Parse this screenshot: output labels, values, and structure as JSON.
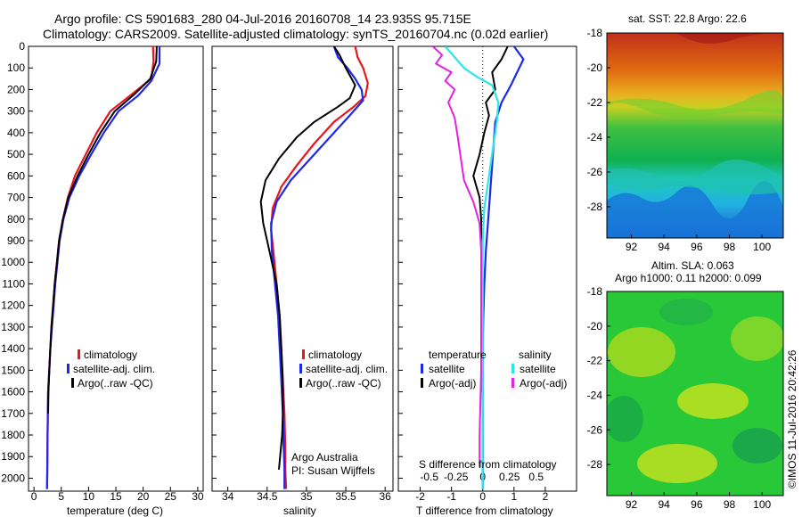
{
  "header": {
    "line1": "Argo profile: CS 5901683_280 04-Jul-2016 20160708_14 23.935S 95.715E",
    "line2": "Climatology: CARS2009. Satellite-adjusted climatology: synTS_20160704.nc (0.02d earlier)"
  },
  "colors": {
    "climatology": "#e8141e",
    "satellite": "#1e28e6",
    "argo": "#000000",
    "satellite_salinity": "#2ee6e6",
    "argo_salinity_adj": "#e61ee6"
  },
  "chart_data": [
    {
      "type": "line",
      "name": "temperature-profile",
      "xlabel": "temperature (deg C)",
      "ylabel": "",
      "xlim": [
        -1,
        31
      ],
      "ylim": [
        0,
        2060
      ],
      "y_inverted": true,
      "xticks": [
        0,
        5,
        10,
        15,
        20,
        25,
        30
      ],
      "yticks": [
        0,
        100,
        200,
        300,
        400,
        500,
        600,
        700,
        800,
        900,
        1000,
        1100,
        1200,
        1300,
        1400,
        1500,
        1600,
        1700,
        1800,
        1900,
        2000
      ],
      "legend": [
        "climatology",
        "satellite-adj. clim.",
        "Argo(..raw -QC)"
      ],
      "series": [
        {
          "name": "climatology",
          "color": "#e8141e",
          "width": 2.2,
          "x": [
            21.8,
            21.9,
            21.5,
            18.0,
            14.0,
            11.5,
            9.5,
            7.5,
            6.2,
            5.3,
            4.6,
            4.2,
            3.8,
            3.5,
            3.2,
            3.0,
            2.8,
            2.6,
            2.5,
            2.45,
            2.4
          ],
          "y": [
            0,
            70,
            150,
            220,
            300,
            400,
            500,
            600,
            700,
            800,
            900,
            1000,
            1100,
            1200,
            1300,
            1400,
            1500,
            1600,
            1800,
            1950,
            2050
          ]
        },
        {
          "name": "satellite-adj. clim.",
          "color": "#1e28e6",
          "width": 2.2,
          "x": [
            23.0,
            23.0,
            21.5,
            19.0,
            15.5,
            12.8,
            10.5,
            8.3,
            6.5,
            5.4,
            4.7,
            4.3,
            3.9,
            3.6,
            3.3,
            3.0,
            2.8,
            2.6,
            2.5,
            2.45,
            2.4
          ],
          "y": [
            0,
            80,
            160,
            230,
            300,
            400,
            500,
            600,
            700,
            800,
            900,
            1000,
            1100,
            1200,
            1300,
            1400,
            1500,
            1600,
            1800,
            1950,
            2050
          ]
        },
        {
          "name": "Argo(..raw -QC)",
          "color": "#000000",
          "width": 2,
          "x": [
            22.5,
            22.4,
            21.3,
            18.5,
            14.8,
            12.2,
            10.0,
            8.0,
            6.3,
            5.3,
            4.6,
            4.2,
            3.8,
            3.5,
            3.2,
            3.0,
            2.8,
            2.65,
            2.6
          ],
          "y": [
            0,
            70,
            150,
            220,
            300,
            400,
            500,
            600,
            700,
            800,
            900,
            1000,
            1100,
            1200,
            1300,
            1400,
            1500,
            1600,
            1700
          ]
        }
      ]
    },
    {
      "type": "line",
      "name": "salinity-profile",
      "xlabel": "salinity",
      "ylabel": "",
      "xlim": [
        33.8,
        36.1
      ],
      "ylim": [
        0,
        2060
      ],
      "y_inverted": true,
      "xticks": [
        34,
        34.5,
        35,
        35.5,
        36
      ],
      "legend": [
        "climatology",
        "satellite-adj. clim.",
        "Argo(..raw -QC)"
      ],
      "annotation": [
        "Argo Australia",
        "PI: Susan Wijffels"
      ],
      "series": [
        {
          "name": "climatology",
          "color": "#e8141e",
          "width": 2.2,
          "x": [
            35.62,
            35.65,
            35.72,
            35.78,
            35.75,
            35.6,
            35.35,
            35.1,
            34.88,
            34.68,
            34.57,
            34.55,
            34.58,
            34.62,
            34.66,
            34.68,
            34.7,
            34.72,
            34.73,
            34.73,
            34.74
          ],
          "y": [
            0,
            50,
            100,
            170,
            230,
            280,
            350,
            450,
            550,
            650,
            750,
            850,
            950,
            1100,
            1250,
            1400,
            1550,
            1700,
            1850,
            1950,
            2050
          ]
        },
        {
          "name": "satellite-adj. clim.",
          "color": "#1e28e6",
          "width": 2.2,
          "x": [
            35.35,
            35.4,
            35.52,
            35.62,
            35.7,
            35.72,
            35.55,
            35.3,
            35.05,
            34.8,
            34.62,
            34.55,
            34.56,
            34.6,
            34.64,
            34.66,
            34.68,
            34.7,
            34.71,
            34.72,
            34.72
          ],
          "y": [
            0,
            50,
            100,
            150,
            200,
            250,
            320,
            420,
            520,
            620,
            720,
            820,
            950,
            1100,
            1250,
            1400,
            1550,
            1700,
            1850,
            1950,
            2050
          ]
        },
        {
          "name": "Argo(..raw -QC)",
          "color": "#000000",
          "width": 2,
          "x": [
            35.35,
            35.42,
            35.5,
            35.62,
            35.55,
            35.4,
            35.1,
            34.88,
            34.65,
            34.48,
            34.42,
            34.45,
            34.5,
            34.56,
            34.62,
            34.66,
            34.68,
            34.7,
            34.7,
            34.69,
            34.67,
            34.65
          ],
          "y": [
            0,
            40,
            100,
            180,
            240,
            280,
            350,
            420,
            520,
            620,
            720,
            820,
            900,
            1000,
            1100,
            1250,
            1400,
            1550,
            1700,
            1800,
            1880,
            1960
          ]
        }
      ]
    },
    {
      "type": "line",
      "name": "difference-profile",
      "xlabel": "T difference from climatology",
      "x2label": "S difference from climatology",
      "ylabel": "",
      "xlim": [
        -2.7,
        3.0
      ],
      "ylim": [
        0,
        2060
      ],
      "y_inverted": true,
      "xticks": [
        -2,
        -1,
        0,
        1,
        2
      ],
      "x2ticks": [
        -0.5,
        -0.25,
        0,
        0.25,
        0.5
      ],
      "x2tick_labels": [
        "-0.5",
        "-0.25",
        "0",
        "0.25",
        "0.5"
      ],
      "legend_temperature": {
        "heading": "temperature",
        "items": [
          "satellite",
          "Argo(-adj)"
        ]
      },
      "legend_salinity": {
        "heading": "salinity",
        "items": [
          "satellite",
          "Argo(-adj)"
        ]
      },
      "series": [
        {
          "name": "temperature satellite",
          "color": "#1e28e6",
          "width": 2.2,
          "x": [
            1.0,
            1.3,
            1.1,
            0.9,
            0.6,
            0.4,
            0.35,
            0.3,
            0.25,
            0.2,
            0.15,
            0.1,
            0.05,
            0.02,
            0,
            0,
            0,
            0
          ],
          "y": [
            0,
            60,
            120,
            180,
            260,
            350,
            450,
            550,
            650,
            750,
            850,
            950,
            1100,
            1250,
            1400,
            1600,
            1800,
            2050
          ]
        },
        {
          "name": "temperature Argo(-adj)",
          "color": "#000000",
          "width": 2,
          "x": [
            0.8,
            0.6,
            0.3,
            0.4,
            0.1,
            0.2,
            0.05,
            -0.1,
            -0.3,
            -0.1,
            -0.05,
            -0.05,
            -0.03,
            -0.02,
            -0.02,
            -0.02
          ],
          "y": [
            0,
            60,
            120,
            200,
            260,
            320,
            400,
            500,
            600,
            700,
            800,
            900,
            1000,
            1200,
            1400,
            1600
          ]
        },
        {
          "name": "salinity satellite",
          "color": "#2ee6e6",
          "width": 2.2,
          "x": [
            -1.2,
            -0.9,
            -0.6,
            -0.2,
            0.3,
            0.5,
            0.45,
            0.35,
            0.25,
            0.15,
            0.05,
            0,
            0,
            0,
            0,
            0
          ],
          "y": [
            0,
            50,
            100,
            140,
            180,
            260,
            350,
            450,
            550,
            650,
            750,
            900,
            1100,
            1400,
            1700,
            2050
          ]
        },
        {
          "name": "salinity Argo(-adj)",
          "color": "#e61ee6",
          "width": 2,
          "x": [
            -1.6,
            -1.3,
            -1.5,
            -1.0,
            -1.2,
            -0.9,
            -1.1,
            -0.9,
            -0.8,
            -0.7,
            -0.6,
            -0.3,
            -0.1,
            -0.05,
            -0.05,
            -0.05,
            -0.1,
            -0.1
          ],
          "y": [
            0,
            40,
            80,
            120,
            160,
            200,
            260,
            330,
            420,
            520,
            620,
            720,
            820,
            950,
            1200,
            1500,
            1800,
            1950
          ]
        }
      ]
    },
    {
      "type": "heatmap",
      "name": "sst-map",
      "title": "sat. SST: 22.8  Argo: 22.6",
      "xlim": [
        90.5,
        101.3
      ],
      "ylim": [
        -29.8,
        -18
      ],
      "xticks": [
        92,
        94,
        96,
        98,
        100
      ],
      "yticks": [
        -18,
        -20,
        -22,
        -24,
        -26,
        -28
      ]
    },
    {
      "type": "heatmap",
      "name": "sla-map",
      "title": [
        "Altim. SLA: 0.063",
        "Argo h1000: 0.11  h2000: 0.099"
      ],
      "xlim": [
        90.5,
        101.3
      ],
      "ylim": [
        -29.8,
        -18
      ],
      "xticks": [
        92,
        94,
        96,
        98,
        100
      ],
      "yticks": [
        -18,
        -20,
        -22,
        -24,
        -26,
        -28
      ]
    }
  ],
  "credit": "©IMOS 11-Jul-2016 20:42:26"
}
